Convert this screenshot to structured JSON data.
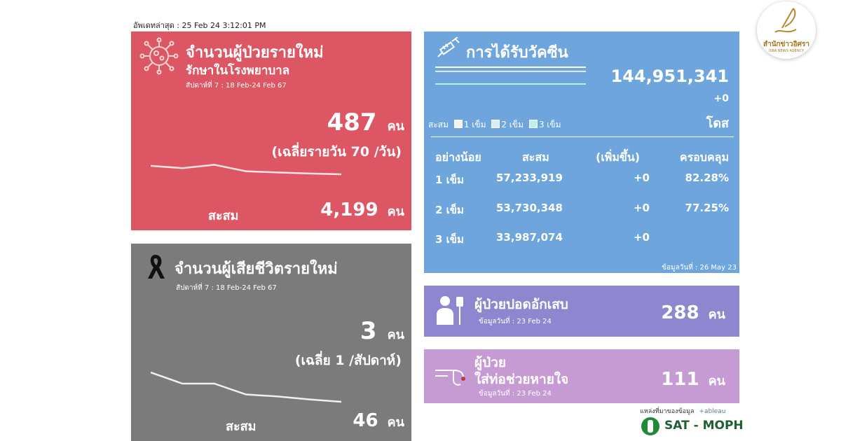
{
  "update_text": "อัพเดทล่าสุด : 25 Feb 24 3:12:01 PM",
  "new_cases": {
    "title": "จำนวนผู้ป่วยรายใหม่",
    "subtitle": "รักษาในโรงพยาบาล",
    "week": "สัปดาห์ที่ 7 : 18 Feb-24 Feb 67",
    "value": "487",
    "unit": "คน",
    "daily_avg": "(เฉลี่ยรายวัน 70 /วัน)",
    "cum_label": "สะสม",
    "cum_value": "4,199",
    "cum_unit": "คน",
    "trend": [
      0.55,
      0.4,
      0.62,
      0.2,
      0.12,
      0.05,
      0.0
    ],
    "color": "#dc5663"
  },
  "deaths": {
    "title": "จำนวนผู้เสียชีวิตรายใหม่",
    "week": "สัปดาห์ที่ 7 : 18 Feb-24 Feb 67",
    "value": "3",
    "unit": "คน",
    "avg": "(เฉลี่ย 1 /สัปดาห์)",
    "cum_label": "สะสม",
    "cum_value": "46",
    "cum_unit": "คน",
    "trend": [
      1.0,
      0.62,
      0.62,
      0.25,
      0.18,
      0.08,
      0.0
    ],
    "color": "#7b7b7b"
  },
  "vaccine": {
    "title": "การได้รับวัคซีน",
    "total": "144,951,341",
    "delta": "+0",
    "unit": "โดส",
    "legend_label": "สะสม",
    "legend": [
      "1 เข็ม",
      "2 เข็ม",
      "3 เข็ม"
    ],
    "legend_colors": [
      "#f2f2f2",
      "#dcecf5",
      "#bff0ef"
    ],
    "columns": [
      "อย่างน้อย",
      "สะสม",
      "(เพิ่มขึ้น)",
      "ครอบคลุม"
    ],
    "rows": [
      {
        "dose": "1 เข็ม",
        "cum": "57,233,919",
        "inc": "+0",
        "cov": "82.28%"
      },
      {
        "dose": "2 เข็ม",
        "cum": "53,730,348",
        "inc": "+0",
        "cov": "77.25%"
      },
      {
        "dose": "3 เข็ม",
        "cum": "33,987,074",
        "inc": "+0",
        "cov": ""
      }
    ],
    "data_date": "ข้อมูลวันที่ : 26 May 23",
    "color": "#6ea5dd"
  },
  "pneumonia": {
    "title": "ผู้ป่วยปอดอักเสบ",
    "date": "ข้อมูลวันที่ : 23 Feb 24",
    "value": "288",
    "unit": "คน",
    "color": "#8e86cf"
  },
  "ventilator": {
    "title_line1": "ผู้ป่วย",
    "title_line2": "ใส่ท่อช่วยหายใจ",
    "date": "ข้อมูลวันที่ : 23 Feb 24",
    "value": "111",
    "unit": "คน",
    "color": "#c69ad3"
  },
  "source": {
    "label": "แหล่งที่มาของข้อมูล",
    "tableau": "+ableau",
    "brand": "SAT - MOPH"
  },
  "logo": {
    "name_th": "สำนักข่าวอิศรา",
    "name_en": "ISRA NEWS AGENCY"
  }
}
